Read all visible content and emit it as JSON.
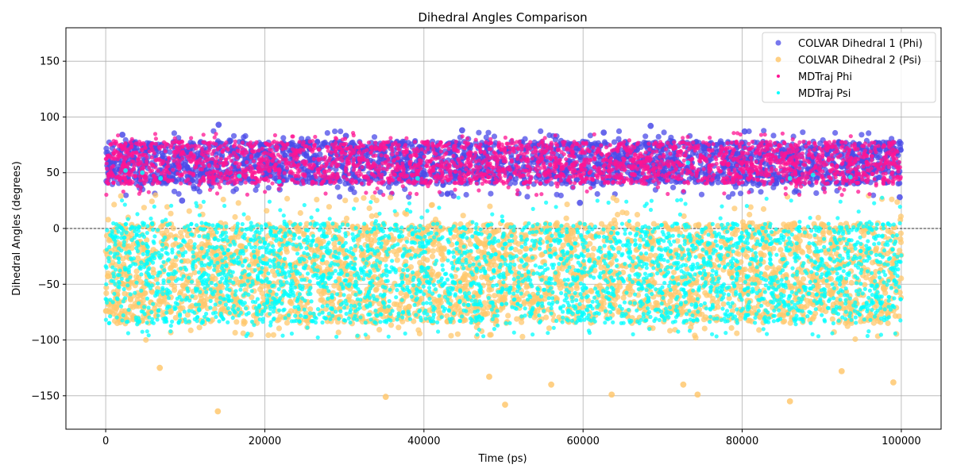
{
  "chart_data": {
    "type": "scatter",
    "title": "Dihedral Angles Comparison",
    "xlabel": "Time (ps)",
    "ylabel": "Dihedral Angles (degrees)",
    "xlim": [
      -5000,
      105000
    ],
    "ylim": [
      -180,
      180
    ],
    "xticks": [
      0,
      20000,
      40000,
      60000,
      80000,
      100000
    ],
    "yticks": [
      -150,
      -100,
      -50,
      0,
      50,
      100,
      150
    ],
    "grid": true,
    "zero_line": 0,
    "legend_position": "top-right",
    "series": [
      {
        "name": "COLVAR Dihedral 1 (Phi)",
        "color": "#4b4be8",
        "marker": "circle-large",
        "band": {
          "x_range": [
            0,
            100000
          ],
          "core": [
            40,
            78
          ],
          "spread": [
            28,
            88
          ]
        },
        "outliers": [
          {
            "x": 14200,
            "y": 93
          },
          {
            "x": 68500,
            "y": 92
          },
          {
            "x": 44800,
            "y": 88
          },
          {
            "x": 80300,
            "y": 87
          },
          {
            "x": 2100,
            "y": 84
          },
          {
            "x": 62600,
            "y": 86
          },
          {
            "x": 30200,
            "y": 83
          },
          {
            "x": 59600,
            "y": 23
          },
          {
            "x": 99800,
            "y": 28
          },
          {
            "x": 9600,
            "y": 25
          }
        ]
      },
      {
        "name": "COLVAR Dihedral 2 (Psi)",
        "color": "#ffc86e",
        "marker": "circle-large",
        "band": {
          "x_range": [
            0,
            100000
          ],
          "core": [
            -85,
            5
          ],
          "spread": [
            -100,
            30
          ]
        },
        "outliers": [
          {
            "x": 14100,
            "y": -164
          },
          {
            "x": 50200,
            "y": -158
          },
          {
            "x": 86000,
            "y": -155
          },
          {
            "x": 35200,
            "y": -151
          },
          {
            "x": 63600,
            "y": -149
          },
          {
            "x": 74400,
            "y": -149
          },
          {
            "x": 48200,
            "y": -133
          },
          {
            "x": 56000,
            "y": -140
          },
          {
            "x": 92500,
            "y": -128
          },
          {
            "x": 6800,
            "y": -125
          },
          {
            "x": 99000,
            "y": -138
          },
          {
            "x": 72600,
            "y": -140
          }
        ]
      },
      {
        "name": "MDTraj Phi",
        "color": "#ff1493",
        "marker": "circle-small",
        "band": {
          "x_range": [
            0,
            100000
          ],
          "core": [
            40,
            78
          ],
          "spread": [
            30,
            86
          ]
        }
      },
      {
        "name": "MDTraj Psi",
        "color": "#00ffff",
        "marker": "circle-small",
        "band": {
          "x_range": [
            0,
            100000
          ],
          "core": [
            -85,
            5
          ],
          "spread": [
            -98,
            28
          ]
        },
        "outliers": [
          {
            "x": 2500,
            "y": 52
          },
          {
            "x": 4600,
            "y": 50
          },
          {
            "x": 6900,
            "y": 45
          },
          {
            "x": 16800,
            "y": 47
          },
          {
            "x": 73200,
            "y": 59
          },
          {
            "x": 88900,
            "y": 48
          },
          {
            "x": 93600,
            "y": 46
          },
          {
            "x": 86000,
            "y": 45
          },
          {
            "x": 39200,
            "y": 45
          },
          {
            "x": 21800,
            "y": 42
          }
        ]
      }
    ]
  }
}
